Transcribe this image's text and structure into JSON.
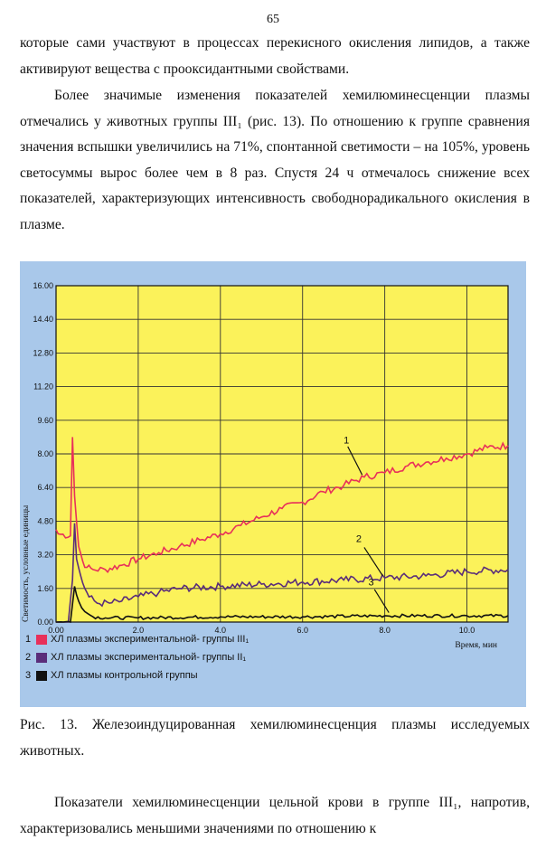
{
  "page_number": "65",
  "paragraph1": "которые сами участвуют в процессах перекисного окисления липидов, а также активируют вещества с прооксидантными свойствами.",
  "paragraph2": "Более значимые изменения показателей хемилюминесценции плазмы отмечались у животных группы III₁ (рис. 13). По отношению к группе сравнения значения вспышки увеличились на 71%, спонтанной светимости – на 105%, уровень светосуммы вырос более чем в 8 раз. Спустя 24 ч отмечалось снижение всех показателей, характеризующих интенсивность свободнорадикального окисления в плазме.",
  "caption": "Рис. 13. Железоиндуцированная хемилюминесценция плазмы исследуемых животных.",
  "paragraph3": "Показатели хемилюминесценции цельной крови в группе III₁, напротив, характеризовались меньшими значениями по отношению к",
  "chart_data": {
    "type": "line",
    "xlabel": "Время, мин",
    "ylabel": "Светимость, условные единицы",
    "xlim": [
      0,
      11
    ],
    "ylim": [
      0,
      16
    ],
    "x_ticks": [
      "0.00",
      "2.0",
      "4.0",
      "6.0",
      "8.0",
      "10.0"
    ],
    "y_ticks": [
      "0.00",
      "1.60",
      "3.20",
      "4.80",
      "6.40",
      "8.00",
      "9.60",
      "11.20",
      "12.80",
      "14.40",
      "16.00"
    ],
    "grid": true,
    "plot_background": "#fbf25a",
    "series": [
      {
        "name": "ХЛ плазмы экспериментальной- группы III₁",
        "number": "1",
        "color": "#e8305a",
        "x": [
          0.0,
          0.05,
          0.35,
          0.4,
          0.45,
          0.55,
          0.65,
          0.75,
          0.9,
          1.2,
          1.6,
          2.0,
          2.5,
          3.0,
          3.5,
          4.0,
          4.5,
          5.0,
          5.5,
          6.0,
          6.5,
          7.0,
          7.5,
          8.0,
          8.5,
          9.0,
          9.5,
          10.0,
          10.5,
          11.0
        ],
        "y": [
          4.4,
          4.2,
          4.1,
          8.8,
          6.0,
          3.6,
          2.9,
          2.6,
          2.5,
          2.5,
          2.7,
          3.0,
          3.3,
          3.6,
          3.9,
          4.2,
          4.6,
          5.0,
          5.4,
          5.7,
          6.2,
          6.5,
          6.9,
          7.1,
          7.4,
          7.6,
          7.8,
          8.0,
          8.3,
          8.4
        ]
      },
      {
        "name": "ХЛ плазмы экспериментальной- группы II₁",
        "number": "2",
        "color": "#5a2d7a",
        "x": [
          0.0,
          0.3,
          0.4,
          0.45,
          0.5,
          0.6,
          0.7,
          0.8,
          1.0,
          1.3,
          1.6,
          2.0,
          2.5,
          3.0,
          4.0,
          5.0,
          6.0,
          7.0,
          8.0,
          9.0,
          10.0,
          11.0
        ],
        "y": [
          0.0,
          0.0,
          2.0,
          4.7,
          3.0,
          2.2,
          1.6,
          1.2,
          0.9,
          0.9,
          1.0,
          1.2,
          1.4,
          1.6,
          1.7,
          1.8,
          1.9,
          2.0,
          2.1,
          2.2,
          2.4,
          2.5
        ]
      },
      {
        "name": "ХЛ плазмы контрольной группы",
        "number": "3",
        "color": "#111111",
        "x": [
          0.0,
          0.35,
          0.45,
          0.55,
          0.7,
          0.9,
          1.2,
          2.0,
          4.0,
          6.0,
          8.0,
          10.0,
          11.0
        ],
        "y": [
          0.0,
          0.0,
          1.7,
          1.0,
          0.5,
          0.25,
          0.2,
          0.2,
          0.25,
          0.25,
          0.3,
          0.3,
          0.3
        ]
      }
    ],
    "annotations": [
      "1",
      "2",
      "3"
    ]
  }
}
